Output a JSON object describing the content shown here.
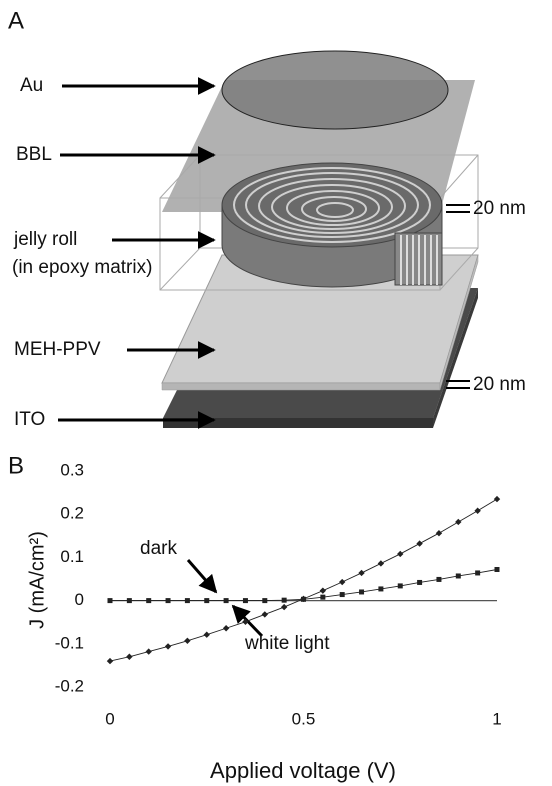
{
  "panel_a": {
    "label": "A",
    "au": "Au",
    "bbl": "BBL",
    "jelly_roll": "jelly roll",
    "matrix": "(in epoxy matrix)",
    "meh_ppv": "MEH-PPV",
    "ito": "ITO",
    "thickness_top": "20 nm",
    "thickness_bottom": "20 nm"
  },
  "chart_data": {
    "type": "line",
    "panel_label": "B",
    "x_label": "Applied voltage (V)",
    "y_label": "J (mA/cm²)",
    "x": [
      0,
      0.05,
      0.1,
      0.15,
      0.2,
      0.25,
      0.3,
      0.35,
      0.4,
      0.45,
      0.5,
      0.55,
      0.6,
      0.65,
      0.7,
      0.75,
      0.8,
      0.85,
      0.9,
      0.95,
      1
    ],
    "series": [
      {
        "name": "white light",
        "color": "#222222",
        "marker": "diamond",
        "values": [
          -0.14,
          -0.13,
          -0.118,
          -0.106,
          -0.093,
          -0.079,
          -0.064,
          -0.049,
          -0.032,
          -0.015,
          0.004,
          0.023,
          0.043,
          0.064,
          0.086,
          0.108,
          0.132,
          0.156,
          0.182,
          0.208,
          0.235
        ]
      },
      {
        "name": "dark",
        "color": "#222222",
        "marker": "square",
        "values": [
          0,
          0,
          0,
          0,
          0,
          0,
          0,
          0,
          0,
          0.001,
          0.003,
          0.008,
          0.014,
          0.02,
          0.027,
          0.034,
          0.042,
          0.049,
          0.057,
          0.064,
          0.072
        ]
      }
    ],
    "xlim": [
      0,
      1
    ],
    "xticks": [
      0,
      0.5,
      1
    ],
    "ylim": [
      -0.2,
      0.3
    ],
    "yticks": [
      0.3,
      0.2,
      0.1,
      0,
      -0.1,
      -0.2
    ],
    "zero_line": true
  }
}
